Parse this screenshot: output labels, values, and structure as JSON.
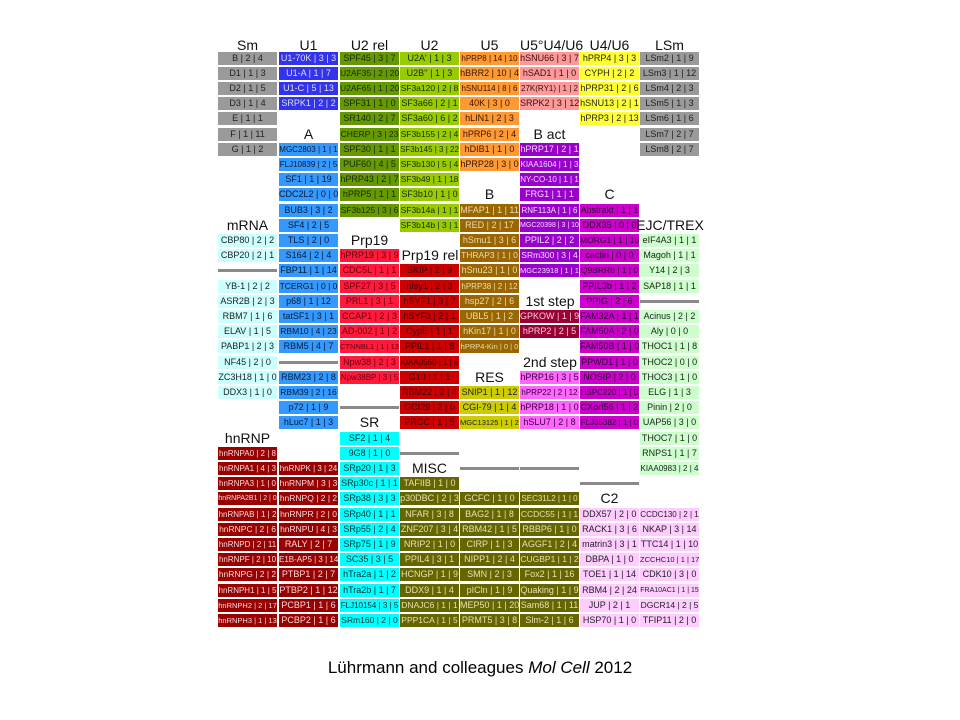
{
  "groups": [
    {
      "label": "Sm",
      "color": "#9a9a9a",
      "text": "#222",
      "items": [
        "B | 2 | 4",
        "D1 | 1 | 3",
        "D2 | 1 | 5",
        "D3 | 1 | 4",
        "E | 1 | 1",
        "F | 1 | 11",
        "G | 1 | 2"
      ]
    },
    {
      "label": "U1",
      "color": "#3333ee",
      "text": "#dde",
      "items": [
        "U1-70K | 3 | 3",
        "U1-A | 1 | 7",
        "U1-C | 5 | 13",
        "SRPK1 | 2 | 2"
      ]
    },
    {
      "label": "U2 rel",
      "color": "#669900",
      "text": "#1a2a00",
      "items": [
        "SPF45 | 3 | 7",
        "U2AF35 | 2 | 20",
        "U2AF65 | 1 | 20",
        "SPF31 | 1 | 0",
        "SR140 | 2 | 7",
        "CHERP | 3 | 23",
        "SPF30 | 1 | 1",
        "PUF60 | 4 | 5",
        "hPRP43 | 2 | 7",
        "hPRP5 | 1 | 1",
        "SF3b125 | 3 | 6"
      ]
    },
    {
      "label": "U2",
      "color": "#99cc00",
      "text": "#1a2a00",
      "items": [
        "U2A' | 1 | 3",
        "U2B'' | 1 | 3",
        "SF3a120 | 2 | 8",
        "SF3a66 | 2 | 1",
        "SF3a60 | 6 | 2",
        "SF3b155 | 2 | 4",
        "SF3b145 | 3 | 22",
        "SF3b130 | 5 | 4",
        "SF3b49 | 1 | 18",
        "SF3b10 | 1 | 0",
        "SF3b14a | 1 | 1",
        "SF3b14b | 3 | 1"
      ]
    },
    {
      "label": "U5",
      "color": "#ff9933",
      "text": "#331a00",
      "items": [
        "hPRP8 | 14 | 10",
        "hBRR2 | 10 | 4",
        "hSNU114 | 8 | 6",
        "40K | 3 | 0",
        "hLIN1 | 2 | 3",
        "hPRP6 | 2 | 4",
        "hDIB1 | 1 | 0",
        "hPRP28 | 3 | 0"
      ]
    },
    {
      "label": "U5°U4/U6",
      "color": "#ff9999",
      "text": "#331111",
      "items": [
        "hSNU66 | 3 | 7",
        "hSAD1 | 1 | 0",
        "27K(RY1) | 1 | 2",
        "SRPK2 | 3 | 12"
      ]
    },
    {
      "label": "U4/U6",
      "color": "#ffff33",
      "text": "#222",
      "items": [
        "hPRP4 | 3 | 3",
        "CYPH | 2 | 2",
        "hPRP31 | 2 | 6",
        "hSNU13 | 2 | 1",
        "hPRP3 | 2 | 13"
      ]
    },
    {
      "label": "LSm",
      "color": "#9a9a9a",
      "text": "#222",
      "items": [
        "LSm2 | 1 | 9",
        "LSm3 | 1 | 12",
        "LSm4 | 2 | 3",
        "LSm5 | 1 | 3",
        "LSm6 | 1 | 6",
        "LSm7 | 2 | 7",
        "LSm8 | 2 | 7"
      ]
    },
    {
      "label": "A",
      "color": "#3399ff",
      "text": "#0a1a33",
      "items": [
        "MGC2803 | 1 | 1",
        "FLJ10839 | 2 | 5",
        "SF1 | 1 | 19",
        "CDC2L2 | 0 | 0",
        "BUB3 | 3 | 2",
        "SF4 | 2 | 5",
        "TLS | 2 | 0",
        "S164 | 2 | 4",
        "FBP11 | 1 | 14",
        "TCERG1 | 0 | 0",
        "p68 | 1 | 12",
        "tatSF1 | 3 | 1",
        "RBM10 | 4 | 23",
        "RBM5 | 4 | 7",
        "RBM23 | 2 | 8",
        "RBM39 | 2 | 16",
        "p72 | 1 | 9",
        "hLuc7 | 1 | 3"
      ]
    },
    {
      "label": "mRNA",
      "color": "#ccffff",
      "text": "#222",
      "items": [
        "CBP80 | 2 | 2",
        "CBP20 | 2 | 1",
        "YB-1 | 2 | 2",
        "ASR2B | 2 | 3",
        "RBM7 | 1 | 6",
        "ELAV | 1 | 5",
        "PABP1 | 2 | 3",
        "NF45 | 2 | 0",
        "ZC3H18 | 1 | 0",
        "DDX3 | 1 | 0"
      ]
    },
    {
      "label": "hnRNP",
      "color": "#990000",
      "text": "#f2dcdc",
      "items": [
        "hnRNPA0 | 2 | 8",
        "hnRNPA1 | 4 | 3",
        "hnRNPA3 | 1 | 0",
        "hnRNPA2B1 | 2 | 0",
        "hnRNPAB | 1 | 2",
        "hnRNPC | 2 | 6",
        "hnRNPD | 2 | 11",
        "hnRNPF | 2 | 10",
        "hnRNPG | 2 | 2",
        "hnRNPH1 | 1 | 5",
        "hnRNPH2 | 2 | 17",
        "hnRNPH3 | 1 | 13",
        "hnRNPK | 3 | 24",
        "hnRNPM | 3 | 3",
        "hnRNPQ | 2 | 2",
        "hnRNPR | 2 | 0",
        "hnRNPU | 4 | 3",
        "RALY | 2 | 7",
        "E1B-AP5 | 3 | 14",
        "PTBP1 | 2 | 7",
        "PTBP2 | 1 | 12",
        "PCBP1 | 1 | 6",
        "PCBP2 | 1 | 6"
      ]
    },
    {
      "label": "Prp19",
      "color": "#ff1a3c",
      "text": "#660010",
      "items": [
        "hPRP19 | 3 | 9",
        "CDC5L | 1 | 1",
        "SPF27 | 3 | 5",
        "PRL1 | 3 | 1",
        "CCAP1 | 2 | 3",
        "AD-002 | 1 | 2",
        "CTNNBL1 | 1 | 13",
        "Npw38 | 2 | 3",
        "Npw38BP | 3 | 5"
      ]
    },
    {
      "label": "SR",
      "color": "#00ffff",
      "text": "#003333",
      "items": [
        "SF2 | 1 | 4",
        "9G8 | 1 | 0",
        "SRp20 | 1 | 3",
        "SRp30c | 1 | 1",
        "SRp38 | 3 | 3",
        "SRp40 | 1 | 1",
        "SRp55 | 2 | 4",
        "SRp75 | 1 | 9",
        "SC35 | 3 | 5",
        "hTra2a | 1 | 2",
        "hTra2b | 1 | 7",
        "FLJ10154 | 3 | 5",
        "SRm160 | 2 | 0"
      ]
    },
    {
      "label": "Prp19 rel",
      "color": "#cc0000",
      "text": "#3a0000",
      "items": [
        "SKIP | 2 | 9",
        "hIsy1 | 2 | 3",
        "hSYF1 | 3 | 7",
        "hSYF3 | 2 | 1",
        "CypE | 1 | 1",
        "PPIL1 | 1 | 8",
        "KIAA0560 | 1 | 6",
        "G10 | 1 | 1",
        "RBM22 | 2 | 4",
        "GCI29 | 2 | 0",
        "PRCC | 1 | 5"
      ]
    },
    {
      "label": "MISC",
      "color": "#666600",
      "text": "#e8e0b0",
      "items": [
        "TAFIIB | 1 | 0",
        "p30DBC | 2 | 3",
        "NFAR | 3 | 8",
        "ZNF207 | 3 | 4",
        "NRIP2 | 1 | 0",
        "PPIL4 | 3 | 1",
        "HCNGP | 1 | 9",
        "DDX9 | 1 | 4",
        "DNAJC6 | 1 | 1",
        "PPP1CA | 1 | 5",
        "GCFC | 1 | 0",
        "BAG2 | 1 | 8",
        "RBM42 | 1 | 5",
        "CIRP | 1 | 3",
        "NIPP1 | 2 | 4",
        "SMN | 2 | 3",
        "pICln | 1 | 9",
        "MEP50 | 1 | 20",
        "PRMT5 | 3 | 8",
        "SEC31L2 | 1 | 0",
        "CCDC55 | 1 | 1",
        "RBBP6 | 1 | 0",
        "AGGF1 | 2 | 4",
        "CUGBP1 | 1 | 2",
        "Fox2 | 1 | 16",
        "Quaking | 1 | 9",
        "Sam68 | 1 | 11",
        "Slm-2 | 1 | 6"
      ]
    },
    {
      "label": "B",
      "color": "#996600",
      "text": "#f0dcb0",
      "items": [
        "MFAP1 | 1 | 11",
        "RED | 2 | 17",
        "hSmu1 | 3 | 6",
        "THRAP3 | 1 | 0",
        "hSnu23 | 1 | 0",
        "hPRP38 | 2 | 12",
        "hsp27 | 2 | 6",
        "UBL5 | 1 | 2",
        "hKin17 | 1 | 0",
        "hPRP4-Kin | 0 | 0"
      ]
    },
    {
      "label": "RES",
      "color": "#cccc00",
      "text": "#222",
      "items": [
        "SNIP1 | 1 | 12",
        "CGI-79 | 1 | 4",
        "MGC13125 | 1 | 2"
      ]
    },
    {
      "label": "B act",
      "color": "#9900cc",
      "text": "#f0ddff",
      "items": [
        "hPRP17 | 2 | 1",
        "KIAA1604 | 1 | 3",
        "NY-CO-10 | 1 | 1",
        "FRG1 | 1 | 1",
        "RNF113A | 1 | 6",
        "MGC20398 | 3 | 10",
        "PPIL2 | 2 | 2",
        "SRm300 | 3 | 4",
        "MGC23918 | 1 | 1"
      ]
    },
    {
      "label": "1st step",
      "color": "#990033",
      "text": "#f5d0dc",
      "items": [
        "GPKOW | 1 | 9",
        "hPRP2 | 2 | 5"
      ]
    },
    {
      "label": "2nd step",
      "color": "#ff66ff",
      "text": "#330033",
      "items": [
        "hPRP16 | 3 | 5",
        "hPRP22 | 2 | 12",
        "hPRP18 | 1 | 0",
        "hSLU7 | 2 | 8"
      ]
    },
    {
      "label": "C",
      "color": "#cc00cc",
      "text": "#2a002a",
      "items": [
        "Abstrakt | 1 | 1",
        "DDX35 | 0 | 0",
        "MORG1 | 1 | 16",
        "cactin | 0 | 0",
        "Q9BRR8 | 1 | 0",
        "PPIL3b | 1 | 2",
        "PPIG | 2 | 6",
        "FAM32A | 1 | 1",
        "FAM50A | 2 | 0",
        "FAM50B | 1 | 0",
        "PPWD1 | 1 | 0",
        "NOSIP | 2 | 0",
        "HSPC220 | 1 | 0",
        "CXorf56 | 1 | 2",
        "FLJ35382 | 1 | 0"
      ]
    },
    {
      "label": "C2",
      "color": "#ffccff",
      "text": "#222",
      "items": [
        "DDX57 | 2 | 0",
        "RACK1 | 3 | 6",
        "matrin3 | 3 | 1",
        "DBPA | 1 | 0",
        "TOE1 | 1 | 14",
        "RBM4 | 2 | 24",
        "JUP | 2 | 1",
        "HSP70 | 1 | 0",
        "CCDC130 | 2 | 1",
        "NKAP | 3 | 14",
        "TTC14 | 1 | 10",
        "ZCCHC10 | 1 | 17",
        "CDK10 | 3 | 0",
        "FRA10AC1 | 1 | 15",
        "DGCR14 | 2 | 5",
        "TFIP11 | 2 | 0"
      ]
    },
    {
      "label": "EJC/TREX",
      "color": "#ccffcc",
      "text": "#222",
      "items": [
        "eIF4A3 | 1 | 1",
        "Magoh | 1 | 1",
        "Y14 | 2 | 3",
        "SAP18 | 1 | 1",
        "Acinus | 2 | 2",
        "Aly | 0 | 0",
        "THOC1 | 1 | 8",
        "THOC2 | 0 | 0",
        "THOC3 | 1 | 0",
        "ELG | 1 | 3",
        "Pinin | 2 | 0",
        "UAP56 | 3 | 0",
        "THOC7 | 1 | 0",
        "RNPS1 | 1 | 7",
        "KIAA0983 | 2 | 4"
      ]
    }
  ],
  "footer": {
    "authors": "Lührmann  and colleagues ",
    "journal": "Mol Cell",
    "year": " 2012"
  }
}
